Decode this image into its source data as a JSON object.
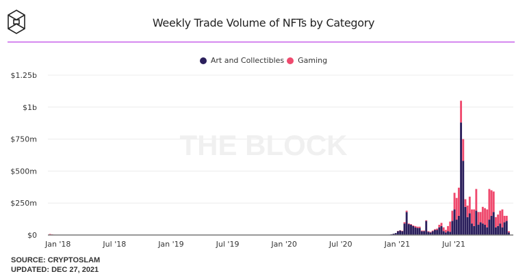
{
  "header": {
    "logo": "the-block-logo",
    "title": "Weekly Trade Volume of NFTs by Category"
  },
  "watermark": "THE BLOCK",
  "footer": {
    "source": "SOURCE: CRYPTOSLAM",
    "updated": "UPDATED: DEC 27, 2021"
  },
  "colors": {
    "art": "#2b1f5c",
    "gaming": "#ef4a6e",
    "accent_rule": "#b01ee0"
  },
  "chart_data": {
    "type": "bar",
    "stacked": true,
    "title": "Weekly Trade Volume of NFTs by Category",
    "xlabel": "",
    "ylabel": "",
    "ylim": [
      0,
      1250
    ],
    "y_unit": "USD millions",
    "y_ticks": [
      0,
      250,
      500,
      750,
      1000,
      1250
    ],
    "y_tick_labels": [
      "$0",
      "$250m",
      "$500m",
      "$750m",
      "$1b",
      "$1.25b"
    ],
    "x_tick_labels": [
      "Jan '18",
      "Jul '18",
      "Jan '19",
      "Jul '19",
      "Jan '20",
      "Jul '20",
      "Jan '21",
      "Jul '21"
    ],
    "x_range_weeks": [
      0,
      214
    ],
    "x_tick_weeks": [
      4,
      30,
      56,
      82,
      108,
      134,
      160,
      186
    ],
    "grid": true,
    "legend": {
      "position": "top-center",
      "entries": [
        "Art and Collectibles",
        "Gaming"
      ]
    },
    "series": [
      {
        "name": "Art and Collectibles",
        "color": "#2b1f5c",
        "points": [
          [
            1,
            3
          ],
          [
            2,
            2
          ],
          [
            3,
            1
          ],
          [
            157,
            3
          ],
          [
            158,
            6
          ],
          [
            159,
            10
          ],
          [
            160,
            15
          ],
          [
            161,
            30
          ],
          [
            162,
            35
          ],
          [
            163,
            30
          ],
          [
            164,
            90
          ],
          [
            165,
            180
          ],
          [
            166,
            85
          ],
          [
            167,
            80
          ],
          [
            168,
            70
          ],
          [
            169,
            60
          ],
          [
            170,
            55
          ],
          [
            171,
            55
          ],
          [
            172,
            30
          ],
          [
            173,
            30
          ],
          [
            174,
            110
          ],
          [
            175,
            25
          ],
          [
            176,
            20
          ],
          [
            177,
            30
          ],
          [
            178,
            40
          ],
          [
            179,
            40
          ],
          [
            180,
            60
          ],
          [
            181,
            70
          ],
          [
            182,
            30
          ],
          [
            183,
            20
          ],
          [
            184,
            30
          ],
          [
            185,
            25
          ],
          [
            186,
            110
          ],
          [
            187,
            200
          ],
          [
            188,
            120
          ],
          [
            189,
            150
          ],
          [
            190,
            880
          ],
          [
            191,
            580
          ],
          [
            192,
            220
          ],
          [
            193,
            140
          ],
          [
            194,
            170
          ],
          [
            195,
            90
          ],
          [
            196,
            70
          ],
          [
            197,
            190
          ],
          [
            198,
            80
          ],
          [
            199,
            100
          ],
          [
            200,
            90
          ],
          [
            201,
            80
          ],
          [
            202,
            60
          ],
          [
            203,
            120
          ],
          [
            204,
            150
          ],
          [
            205,
            180
          ],
          [
            206,
            60
          ],
          [
            207,
            70
          ],
          [
            208,
            90
          ],
          [
            209,
            60
          ],
          [
            210,
            100
          ],
          [
            211,
            110
          ],
          [
            212,
            20
          ]
        ]
      },
      {
        "name": "Gaming",
        "color": "#ef4a6e",
        "points": [
          [
            1,
            5
          ],
          [
            2,
            3
          ],
          [
            3,
            2
          ],
          [
            157,
            0
          ],
          [
            158,
            0
          ],
          [
            159,
            0
          ],
          [
            160,
            0
          ],
          [
            161,
            2
          ],
          [
            162,
            2
          ],
          [
            163,
            3
          ],
          [
            164,
            10
          ],
          [
            165,
            10
          ],
          [
            166,
            5
          ],
          [
            167,
            5
          ],
          [
            168,
            5
          ],
          [
            169,
            10
          ],
          [
            170,
            10
          ],
          [
            171,
            10
          ],
          [
            172,
            5
          ],
          [
            173,
            5
          ],
          [
            174,
            5
          ],
          [
            175,
            5
          ],
          [
            176,
            5
          ],
          [
            177,
            5
          ],
          [
            178,
            5
          ],
          [
            179,
            10
          ],
          [
            180,
            20
          ],
          [
            181,
            25
          ],
          [
            182,
            30
          ],
          [
            183,
            20
          ],
          [
            184,
            40
          ],
          [
            185,
            80
          ],
          [
            186,
            80
          ],
          [
            187,
            130
          ],
          [
            188,
            170
          ],
          [
            189,
            220
          ],
          [
            190,
            170
          ],
          [
            191,
            170
          ],
          [
            192,
            60
          ],
          [
            193,
            90
          ],
          [
            194,
            130
          ],
          [
            195,
            110
          ],
          [
            196,
            130
          ],
          [
            197,
            170
          ],
          [
            198,
            100
          ],
          [
            199,
            80
          ],
          [
            200,
            130
          ],
          [
            201,
            130
          ],
          [
            202,
            140
          ],
          [
            203,
            240
          ],
          [
            204,
            200
          ],
          [
            205,
            160
          ],
          [
            206,
            80
          ],
          [
            207,
            90
          ],
          [
            208,
            100
          ],
          [
            209,
            140
          ],
          [
            210,
            50
          ],
          [
            211,
            40
          ],
          [
            212,
            10
          ]
        ]
      }
    ]
  }
}
